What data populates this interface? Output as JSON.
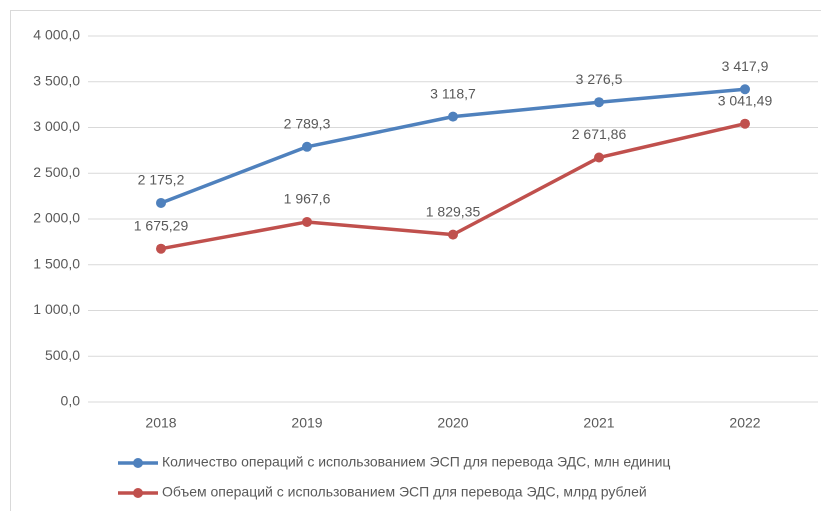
{
  "chart_data": {
    "type": "line",
    "categories": [
      "2018",
      "2019",
      "2020",
      "2021",
      "2022"
    ],
    "series": [
      {
        "name": "Количество операций с использованием ЭСП для перевода ЭДС, млн  единиц",
        "color": "#4f81bd",
        "values": [
          2175.2,
          2789.3,
          3118.7,
          3276.5,
          3417.9
        ],
        "value_labels": [
          "2 175,2",
          "2 789,3",
          "3 118,7",
          "3 276,5",
          "3 417,9"
        ]
      },
      {
        "name": "Объем операций с использованием ЭСП для перевода ЭДС, млрд  рублей",
        "color": "#c0504d",
        "values": [
          1675.29,
          1967.6,
          1829.35,
          2671.86,
          3041.49
        ],
        "value_labels": [
          "1 675,29",
          "1 967,6",
          "1 829,35",
          "2 671,86",
          "3 041,49"
        ]
      }
    ],
    "ylim": [
      0,
      4000
    ],
    "yticks": [
      {
        "value": 0,
        "label": "0,0"
      },
      {
        "value": 500,
        "label": "500,0"
      },
      {
        "value": 1000,
        "label": "1 000,0"
      },
      {
        "value": 1500,
        "label": "1 500,0"
      },
      {
        "value": 2000,
        "label": "2 000,0"
      },
      {
        "value": 2500,
        "label": "2 500,0"
      },
      {
        "value": 3000,
        "label": "3 000,0"
      },
      {
        "value": 3500,
        "label": "3 500,0"
      },
      {
        "value": 4000,
        "label": "4 000,0"
      }
    ],
    "grid": true
  }
}
